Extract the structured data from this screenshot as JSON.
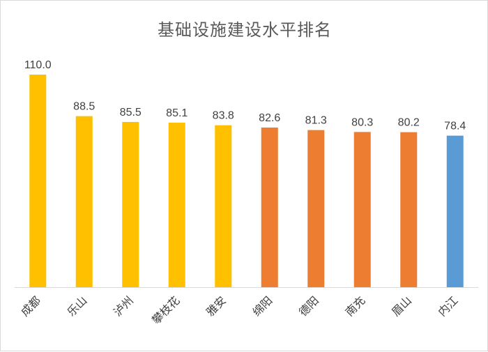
{
  "chart_data": {
    "type": "bar",
    "title": "基础设施建设水平排名",
    "categories": [
      "成都",
      "乐山",
      "泸州",
      "攀枝花",
      "雅安",
      "绵阳",
      "德阳",
      "南充",
      "眉山",
      "内江"
    ],
    "values": [
      110.0,
      88.5,
      85.5,
      85.1,
      83.8,
      82.6,
      81.3,
      80.3,
      80.2,
      78.4
    ],
    "value_labels": [
      "110.0",
      "88.5",
      "85.5",
      "85.1",
      "83.8",
      "82.6",
      "81.3",
      "80.3",
      "80.2",
      "78.4"
    ],
    "colors": [
      "#FFC000",
      "#FFC000",
      "#FFC000",
      "#FFC000",
      "#FFC000",
      "#ED7D31",
      "#ED7D31",
      "#ED7D31",
      "#ED7D31",
      "#5B9BD5"
    ],
    "xlabel": "",
    "ylabel": "",
    "ylim": [
      0,
      110
    ],
    "grid": false,
    "legend": "none"
  }
}
